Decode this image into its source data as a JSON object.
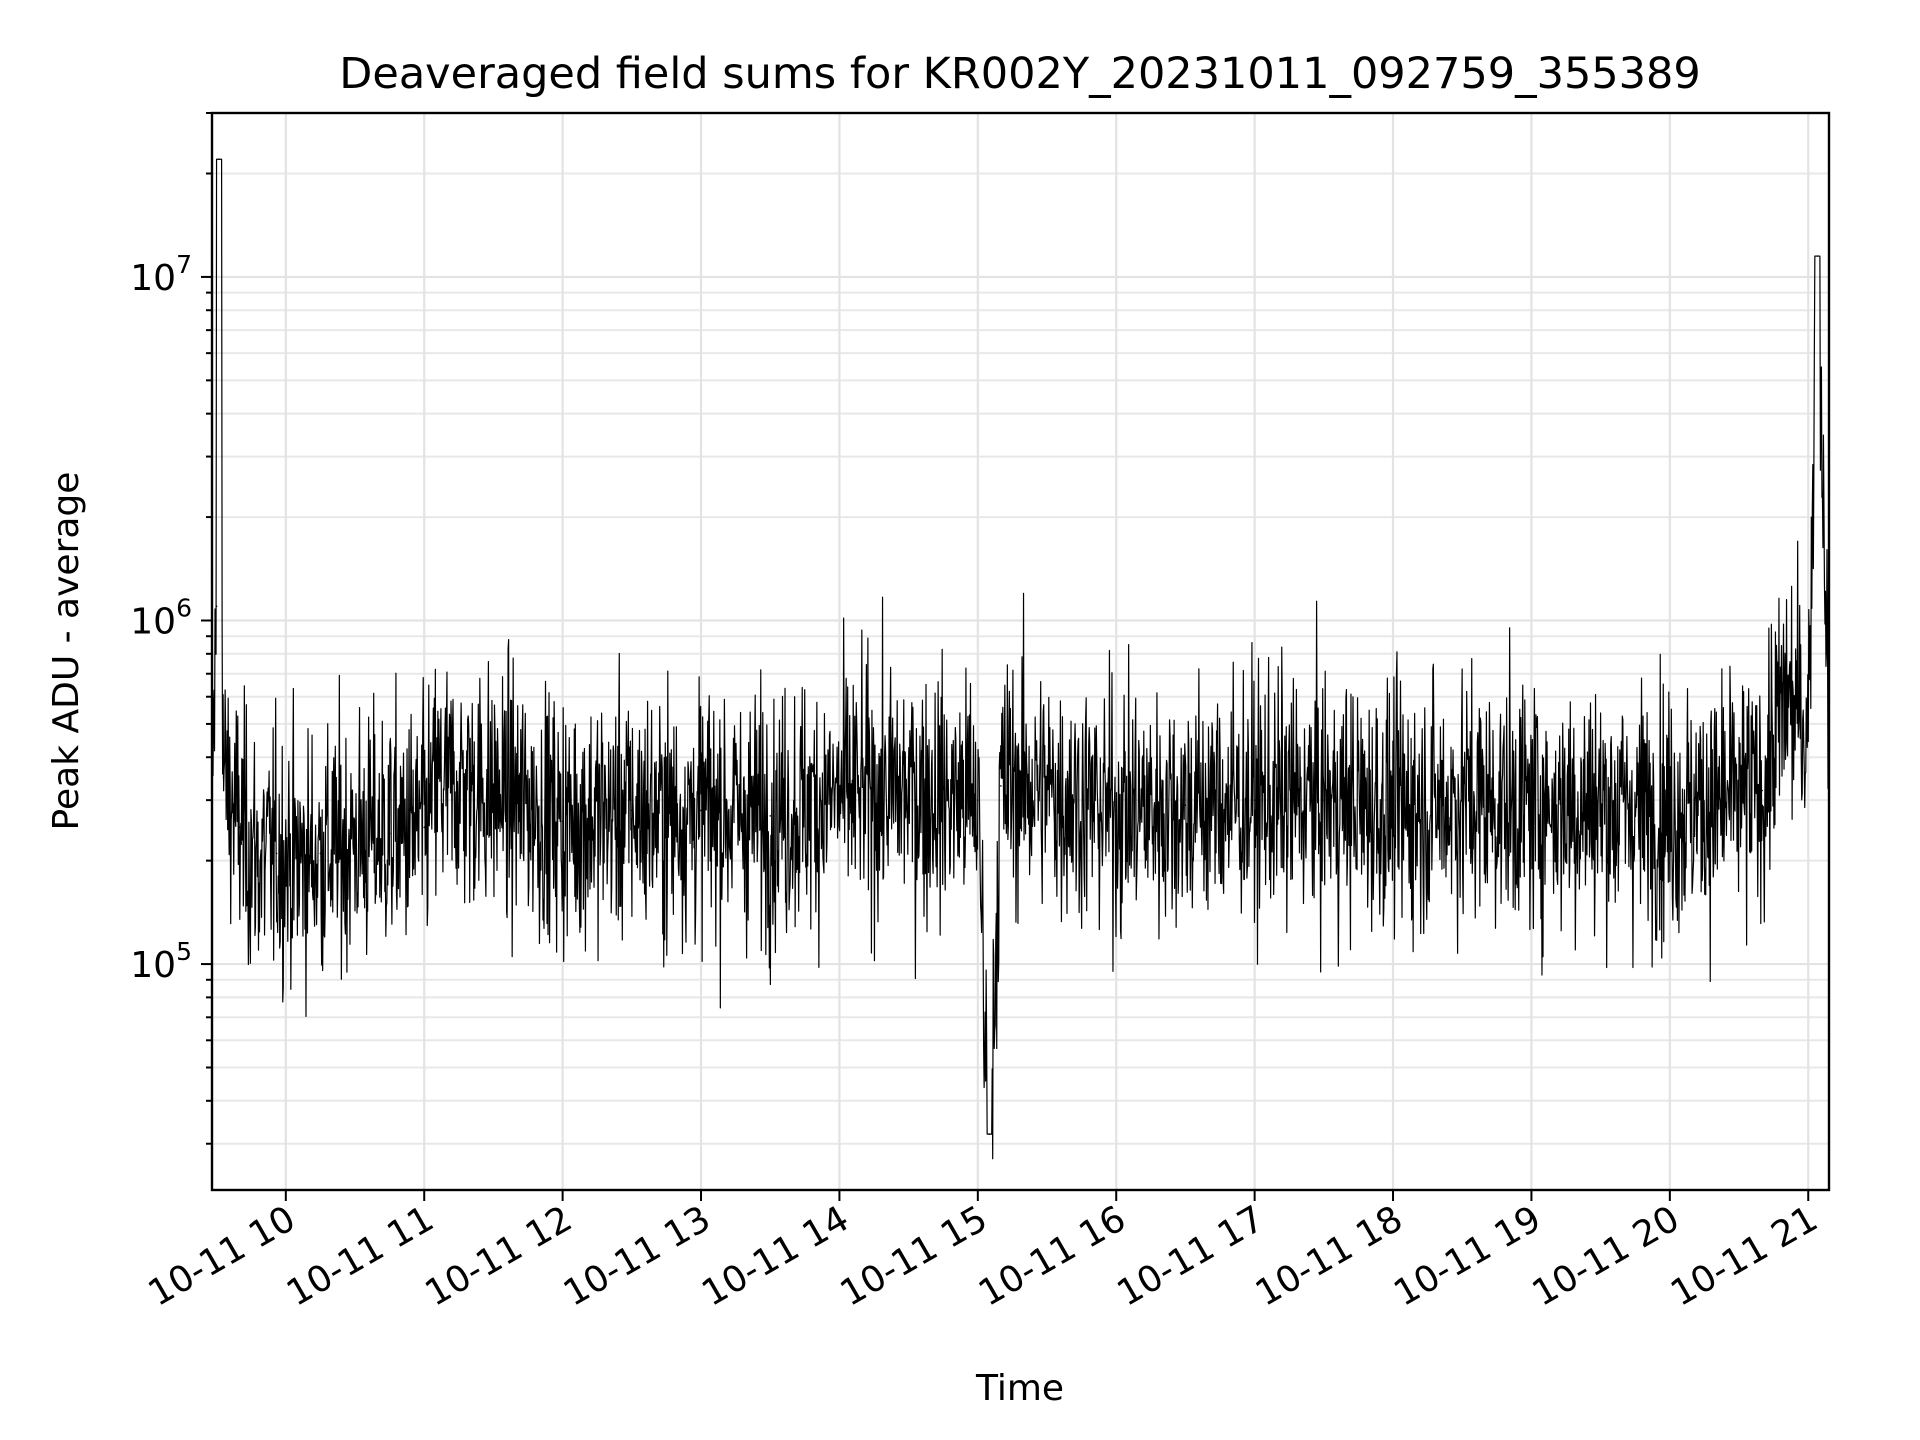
{
  "chart_data": {
    "type": "line",
    "title": "Deaveraged field sums for KR002Y_20231011_092759_355389",
    "xlabel": "Time",
    "ylabel": "Peak ADU - average",
    "y_scale": "log",
    "ylim": [
      22000,
      30000000
    ],
    "xlim": [
      "2023-10-11 09:28",
      "2023-10-11 21:09"
    ],
    "grid": true,
    "x_tick_labels": [
      "10-11 10",
      "10-11 11",
      "10-11 12",
      "10-11 13",
      "10-11 14",
      "10-11 15",
      "10-11 16",
      "10-11 17",
      "10-11 18",
      "10-11 19",
      "10-11 20",
      "10-11 21"
    ],
    "x_tick_values": [
      "2023-10-11 10:00",
      "2023-10-11 11:00",
      "2023-10-11 12:00",
      "2023-10-11 13:00",
      "2023-10-11 14:00",
      "2023-10-11 15:00",
      "2023-10-11 16:00",
      "2023-10-11 17:00",
      "2023-10-11 18:00",
      "2023-10-11 19:00",
      "2023-10-11 20:00",
      "2023-10-11 21:00"
    ],
    "y_ticks": [
      {
        "value": 100000,
        "base": "10",
        "exp": "5"
      },
      {
        "value": 1000000,
        "base": "10",
        "exp": "6"
      },
      {
        "value": 10000000,
        "base": "10",
        "exp": "7"
      }
    ],
    "series": [
      {
        "color": "#000000",
        "x": [
          "2023-10-11 09:28",
          "2023-10-11 09:30",
          "2023-10-11 09:31",
          "2023-10-11 09:33",
          "2023-10-11 09:40",
          "2023-10-11 09:48",
          "2023-10-11 09:56",
          "2023-10-11 10:05",
          "2023-10-11 10:15",
          "2023-10-11 10:30",
          "2023-10-11 10:45",
          "2023-10-11 11:00",
          "2023-10-11 11:05",
          "2023-10-11 11:20",
          "2023-10-11 11:40",
          "2023-10-11 12:00",
          "2023-10-11 12:30",
          "2023-10-11 12:45",
          "2023-10-11 13:00",
          "2023-10-11 13:30",
          "2023-10-11 14:00",
          "2023-10-11 14:30",
          "2023-10-11 15:00",
          "2023-10-11 15:05",
          "2023-10-11 15:10",
          "2023-10-11 15:20",
          "2023-10-11 15:30",
          "2023-10-11 16:00",
          "2023-10-11 16:30",
          "2023-10-11 17:00",
          "2023-10-11 17:30",
          "2023-10-11 18:00",
          "2023-10-11 18:30",
          "2023-10-11 19:00",
          "2023-10-11 19:30",
          "2023-10-11 19:45",
          "2023-10-11 20:00",
          "2023-10-11 20:20",
          "2023-10-11 20:40",
          "2023-10-11 20:50",
          "2023-10-11 21:00",
          "2023-10-11 21:04",
          "2023-10-11 21:09"
        ],
        "values": [
          300000,
          1100000,
          22000000,
          350000,
          250000,
          200000,
          210000,
          200000,
          210000,
          230000,
          240000,
          250000,
          330000,
          330000,
          300000,
          260000,
          280000,
          270000,
          280000,
          270000,
          310000,
          320000,
          300000,
          32000,
          330000,
          340000,
          320000,
          280000,
          290000,
          300000,
          300000,
          280000,
          300000,
          290000,
          290000,
          285000,
          280000,
          290000,
          320000,
          600000,
          500000,
          11500000,
          520000
        ]
      }
    ]
  }
}
